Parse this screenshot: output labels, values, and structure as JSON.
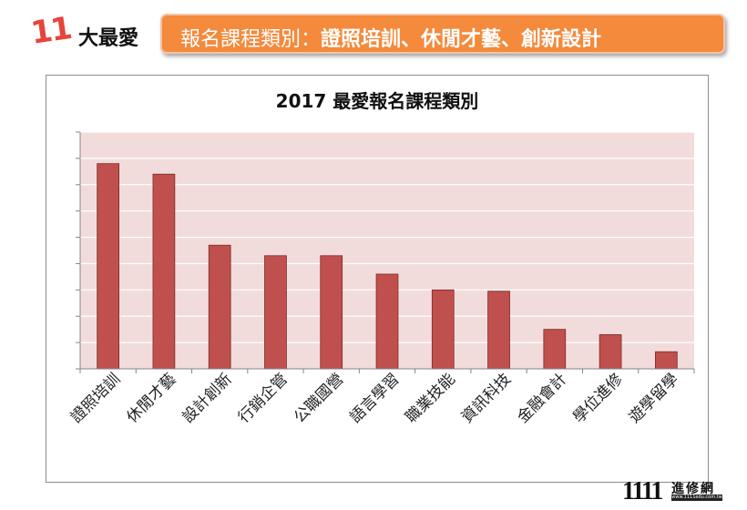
{
  "header": {
    "number": "11",
    "title": "大最愛",
    "banner_prefix": "報名課程類別：",
    "banner_items": "證照培訓、休閒才藝、創新設計"
  },
  "colors": {
    "bar": "#c0504d",
    "plot_bg": "#f2dcdb",
    "banner": "#f48a3c",
    "accent_number": "#e6453c"
  },
  "chart_data": {
    "type": "bar",
    "title": "2017 最愛報名課程類別",
    "categories": [
      "證照培訓",
      "休閒才藝",
      "設計創新",
      "行銷企管",
      "公職國營",
      "語言學習",
      "職業技能",
      "資訊科技",
      "金融會計",
      "學位進修",
      "遊學留學"
    ],
    "values": [
      7.8,
      7.4,
      4.7,
      4.3,
      4.3,
      3.6,
      3.0,
      2.95,
      1.5,
      1.3,
      0.65
    ],
    "ylim": [
      0,
      9
    ],
    "y_gridlines": 9,
    "grid": true,
    "ytick_labels_shown": false,
    "xlabel": "",
    "ylabel": ""
  },
  "logo": {
    "number": "1111",
    "name": "進修網",
    "url": "www.1111edu.com.tw"
  }
}
